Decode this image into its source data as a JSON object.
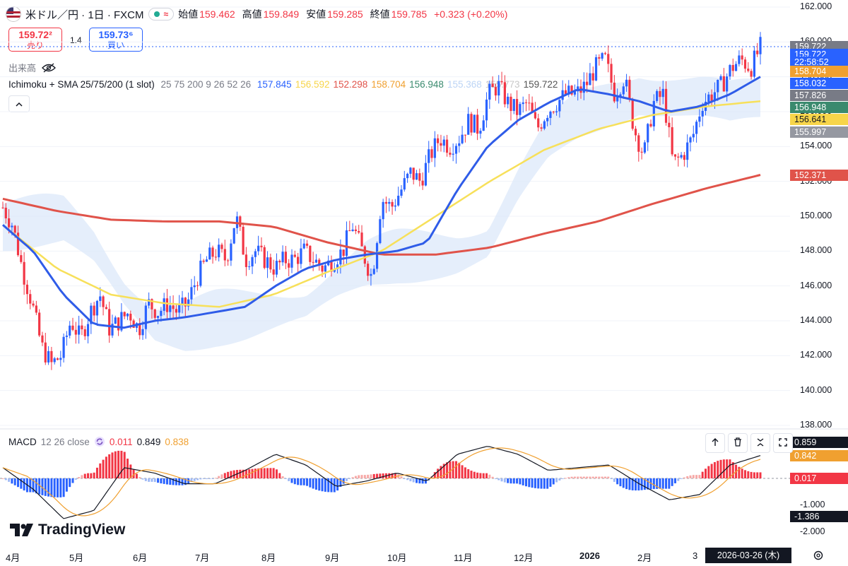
{
  "header": {
    "symbol": "米ドル／円 · 1日 · FXCM",
    "approx_icon": "≈",
    "ohlc": [
      {
        "label": "始値",
        "value": "159.462"
      },
      {
        "label": "高値",
        "value": "159.849"
      },
      {
        "label": "安値",
        "value": "159.285"
      },
      {
        "label": "終値",
        "value": "159.785"
      }
    ],
    "change": "+0.323 (+0.20%)"
  },
  "trade": {
    "sell_price": "159.72²",
    "sell_label": "売り",
    "spread": "1.4",
    "buy_price": "159.73⁶",
    "buy_label": "買い"
  },
  "volume_label": "出来高",
  "indicator": {
    "name": "Ichimoku + SMA 25/75/200 (1 slot)",
    "params": "25 75 200 9 26 52 26",
    "values": [
      {
        "v": "157.845",
        "color": "#2962ff"
      },
      {
        "v": "156.592",
        "color": "#f7d54a"
      },
      {
        "v": "152.298",
        "color": "#e0534a"
      },
      {
        "v": "158.704",
        "color": "#f0a030"
      },
      {
        "v": "156.948",
        "color": "#3a8a6e"
      },
      {
        "v": "155.368",
        "color": "#bcd4f5"
      },
      {
        "v": "155.773",
        "color": "#c8c8c8"
      },
      {
        "v": "159.722",
        "color": "#555555"
      }
    ]
  },
  "price_axis": {
    "ticks": [
      "162.000",
      "160.000",
      "158.000",
      "156.000",
      "154.000",
      "152.000",
      "150.000",
      "148.000",
      "146.000",
      "144.000",
      "142.000",
      "140.000",
      "138.000"
    ],
    "tags": [
      {
        "text": "159.722",
        "color": "#787b86",
        "value": 159.722
      },
      {
        "text": "159.722",
        "color": "#2962ff",
        "value": 159.3
      },
      {
        "text": "22:58:52",
        "color": "#2962ff",
        "value": 158.85
      },
      {
        "text": "158.704",
        "color": "#f0a030",
        "value": 158.33
      },
      {
        "text": "158.032",
        "color": "#2962ff",
        "value": 157.63
      },
      {
        "text": "157.826",
        "color": "#787b86",
        "value": 156.93
      },
      {
        "text": "156.948",
        "color": "#3a8a6e",
        "value": 156.24
      },
      {
        "text": "156.641",
        "color": "#f7d54a",
        "value": 155.54
      },
      {
        "text": "155.997",
        "color": "#9598a1",
        "value": 154.84
      },
      {
        "text": "152.371",
        "color": "#e0534a",
        "value": 152.371
      }
    ]
  },
  "macd": {
    "label": "MACD",
    "params": "12 26 close",
    "values": [
      {
        "v": "0.011",
        "color": "#f23645"
      },
      {
        "v": "0.849",
        "color": "#131722"
      },
      {
        "v": "0.838",
        "color": "#f0a030"
      }
    ],
    "axis_ticks": [
      "-1.000",
      "-2.000"
    ],
    "tags": [
      {
        "text": "0.859",
        "color": "#131722",
        "value": 0.859
      },
      {
        "text": "0.842",
        "color": "#f0a030",
        "value": 0.842
      },
      {
        "text": "0.017",
        "color": "#f23645",
        "value": 0.017
      },
      {
        "text": "-1.386",
        "color": "#131722",
        "value": -1.386
      }
    ]
  },
  "time_axis": [
    "4月",
    "5月",
    "6月",
    "7月",
    "8月",
    "9月",
    "10月",
    "11月",
    "12月",
    "2026",
    "2月",
    "3"
  ],
  "crosshair_date": "2026-03-26 (木)",
  "logo": "TradingView",
  "chart_data": {
    "type": "candlestick",
    "ylim": [
      137.6,
      162.4
    ],
    "months": [
      "4月",
      "5月",
      "6月",
      "7月",
      "8月",
      "9月",
      "10月",
      "11月",
      "12月",
      "2026",
      "2月",
      "3"
    ],
    "close_approx": [
      150.5,
      149.5,
      147.0,
      145.0,
      142.5,
      141.5,
      142.0,
      144.0,
      143.0,
      144.5,
      145.5,
      143.5,
      144.0,
      144.5,
      143.5,
      145.0,
      144.5,
      145.0,
      144.5,
      145.0,
      146.5,
      147.5,
      148.0,
      147.5,
      150.0,
      147.5,
      148.0,
      147.5,
      147.0,
      147.5,
      147.5,
      148.0,
      147.5,
      147.0,
      147.5,
      148.0,
      149.5,
      148.0,
      146.5,
      151.0,
      150.5,
      151.5,
      152.5,
      152.0,
      153.5,
      154.5,
      154.0,
      154.5,
      155.5,
      155.0,
      157.0,
      157.5,
      156.5,
      156.0,
      156.5,
      155.0,
      156.0,
      156.5,
      157.0,
      157.0,
      157.5,
      158.5,
      159.0,
      157.0,
      158.0,
      155.0,
      153.5,
      156.5,
      157.0,
      153.0,
      153.5,
      154.5,
      156.5,
      157.0,
      157.5,
      158.5,
      159.0,
      158.5,
      159.7
    ],
    "sma25_approx": [
      149.5,
      148.0,
      145.5,
      143.8,
      143.6,
      144.0,
      144.2,
      144.5,
      144.8,
      146.0,
      147.0,
      147.5,
      147.8,
      148.0,
      148.5,
      151.5,
      154.0,
      155.5,
      156.5,
      157.3,
      157.0,
      156.6,
      156.0,
      156.3,
      157.0,
      158.0
    ],
    "sma75_approx": [
      149.5,
      147.0,
      145.5,
      145.0,
      144.8,
      145.5,
      146.8,
      148.0,
      150.0,
      152.0,
      153.8,
      155.0,
      155.8,
      156.3,
      156.6
    ],
    "sma200_approx": [
      151.0,
      150.3,
      149.8,
      149.7,
      149.7,
      149.4,
      148.5,
      147.8,
      147.8,
      148.2,
      149.0,
      149.7,
      150.7,
      151.6,
      152.37
    ]
  }
}
